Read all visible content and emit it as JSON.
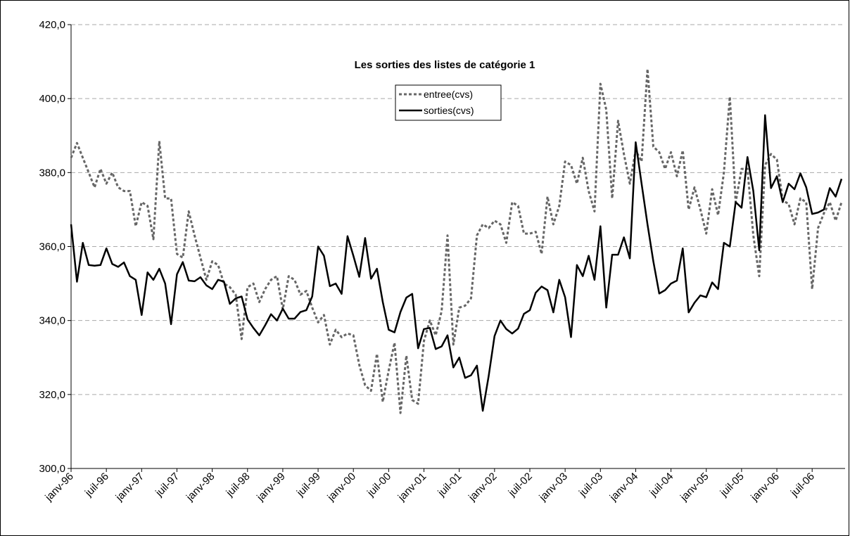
{
  "chart_data": {
    "type": "line",
    "title": "Les sorties des listes de catégorie 1",
    "categories": [
      "janv-96",
      null,
      null,
      null,
      null,
      null,
      "juil-96",
      null,
      null,
      null,
      null,
      null,
      "janv-97",
      null,
      null,
      null,
      null,
      null,
      "juil-97",
      null,
      null,
      null,
      null,
      null,
      "janv-98",
      null,
      null,
      null,
      null,
      null,
      "juil-98",
      null,
      null,
      null,
      null,
      null,
      "janv-99",
      null,
      null,
      null,
      null,
      null,
      "juil-99",
      null,
      null,
      null,
      null,
      null,
      "janv-00",
      null,
      null,
      null,
      null,
      null,
      "juil-00",
      null,
      null,
      null,
      null,
      null,
      "janv-01",
      null,
      null,
      null,
      null,
      null,
      "juil-01",
      null,
      null,
      null,
      null,
      null,
      "janv-02",
      null,
      null,
      null,
      null,
      null,
      "juil-02",
      null,
      null,
      null,
      null,
      null,
      "janv-03",
      null,
      null,
      null,
      null,
      null,
      "juil-03",
      null,
      null,
      null,
      null,
      null,
      "janv-04",
      null,
      null,
      null,
      null,
      null,
      "juil-04",
      null,
      null,
      null,
      null,
      null,
      "janv-05",
      null,
      null,
      null,
      null,
      null,
      "juil-05",
      null,
      null,
      null,
      null,
      null,
      "janv-06",
      null,
      null,
      null,
      null,
      null,
      "juil-06",
      null,
      null,
      null,
      null,
      null
    ],
    "series": [
      {
        "name": "entree(cvs)",
        "color": "#666666",
        "dashed": true,
        "values": [
          384,
          388,
          384,
          380,
          376,
          381,
          377,
          380,
          376,
          375,
          375,
          365.5,
          372,
          371,
          362,
          388.5,
          373,
          373,
          358,
          357,
          369.5,
          363,
          357,
          351,
          356,
          355,
          350,
          349,
          347,
          335,
          349,
          350,
          345,
          348.5,
          351,
          352,
          343,
          352,
          351,
          347,
          348,
          343.5,
          339.5,
          341.5,
          333.5,
          337.5,
          335.5,
          336.5,
          336,
          328,
          322.5,
          321,
          331,
          318,
          326.5,
          334,
          315,
          330.5,
          318.5,
          317.5,
          334.5,
          340,
          336,
          342.5,
          363,
          333.5,
          343.5,
          344,
          346,
          363,
          366,
          365,
          367,
          366,
          361,
          372,
          371,
          363.5,
          363.5,
          364,
          358,
          373.5,
          366,
          371,
          383,
          382,
          377,
          384,
          375,
          369.5,
          404,
          397,
          373,
          394,
          385,
          377,
          386,
          383,
          408,
          387,
          385.5,
          381,
          385.5,
          379,
          386,
          370,
          376,
          370,
          363.5,
          375.5,
          368.5,
          380,
          400.5,
          372,
          381,
          381,
          363,
          352,
          382,
          385,
          383.5,
          372.5,
          371.5,
          366,
          373,
          372,
          348.5,
          365,
          369,
          372,
          367,
          372
        ]
      },
      {
        "name": "sorties(cvs)",
        "color": "#000000",
        "dashed": false,
        "values": [
          366,
          350.5,
          361,
          355,
          354.8,
          355,
          359.5,
          355.3,
          354.5,
          355.7,
          352,
          351,
          341.5,
          353,
          351,
          354,
          350,
          339,
          352.5,
          355.8,
          350.8,
          350.6,
          351.7,
          349.5,
          348.5,
          351,
          350.5,
          344.5,
          346,
          346.5,
          340.3,
          338,
          336,
          338.7,
          341.7,
          340,
          343.2,
          340.5,
          340.5,
          342.3,
          342.8,
          346.5,
          360,
          357.5,
          349.3,
          350,
          347.2,
          362.8,
          357.5,
          351.8,
          362.3,
          351.3,
          354,
          345,
          337.5,
          336.8,
          342.3,
          346.2,
          347.2,
          332.5,
          337.7,
          338,
          332.3,
          333,
          336,
          327.3,
          330,
          324.5,
          325.2,
          327.8,
          315.6,
          325,
          335.8,
          340,
          337.7,
          336.5,
          337.8,
          341.8,
          342.8,
          347.5,
          349.2,
          348.2,
          342.2,
          351,
          346.3,
          335.5,
          355,
          352,
          357.5,
          351,
          365.5,
          343.5,
          357.8,
          357.8,
          362.5,
          356.8,
          388.2,
          377,
          366,
          356,
          347.3,
          348.2,
          350,
          350.8,
          359.5,
          342.2,
          344.8,
          346.8,
          346.3,
          350.3,
          348.5,
          361,
          360,
          372,
          370.5,
          384.2,
          375,
          359,
          395.5,
          375.8,
          379,
          372,
          377,
          375.5,
          379.8,
          376,
          368.8,
          369.2,
          370,
          375.8,
          373.5,
          378.3
        ]
      }
    ],
    "ylim": [
      300,
      420
    ],
    "yticks": [
      {
        "value": 300,
        "label": "300,0"
      },
      {
        "value": 320,
        "label": "320,0"
      },
      {
        "value": 340,
        "label": "340,0"
      },
      {
        "value": 360,
        "label": "360,0"
      },
      {
        "value": 380,
        "label": "380,0"
      },
      {
        "value": 400,
        "label": "400,0"
      },
      {
        "value": 420,
        "label": "420,0"
      }
    ],
    "grid": true,
    "legend": "top"
  }
}
